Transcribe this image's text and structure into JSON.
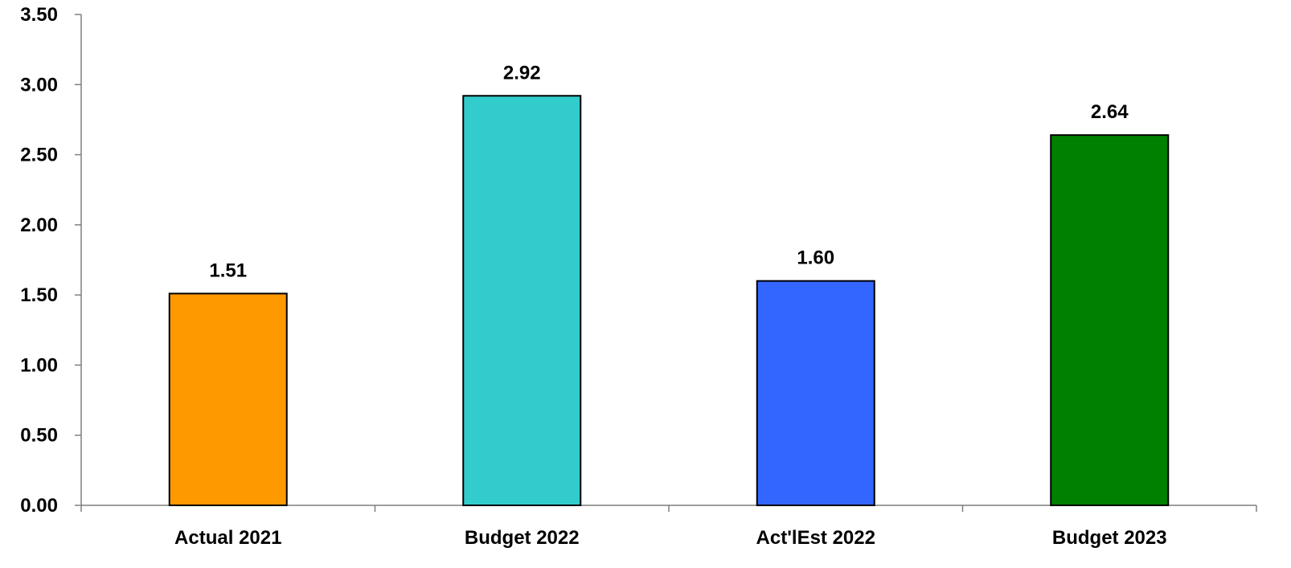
{
  "chart_data": {
    "type": "bar",
    "title": "",
    "xlabel": "",
    "ylabel": "",
    "categories": [
      "Actual 2021",
      "Budget 2022",
      "Act'lEst 2022",
      "Budget 2023"
    ],
    "values": [
      1.51,
      2.92,
      1.6,
      2.64
    ],
    "value_labels": [
      "1.51",
      "2.92",
      "1.60",
      "2.64"
    ],
    "bar_colors": [
      "#FF9900",
      "#33CCCC",
      "#3366FF",
      "#008000"
    ],
    "ylim": [
      0,
      3.5
    ],
    "y_ticks": [
      "0.00",
      "0.50",
      "1.00",
      "1.50",
      "2.00",
      "2.50",
      "3.00",
      "3.50"
    ],
    "y_tick_values": [
      0,
      0.5,
      1.0,
      1.5,
      2.0,
      2.5,
      3.0,
      3.5
    ],
    "grid": false,
    "legend": "none"
  }
}
